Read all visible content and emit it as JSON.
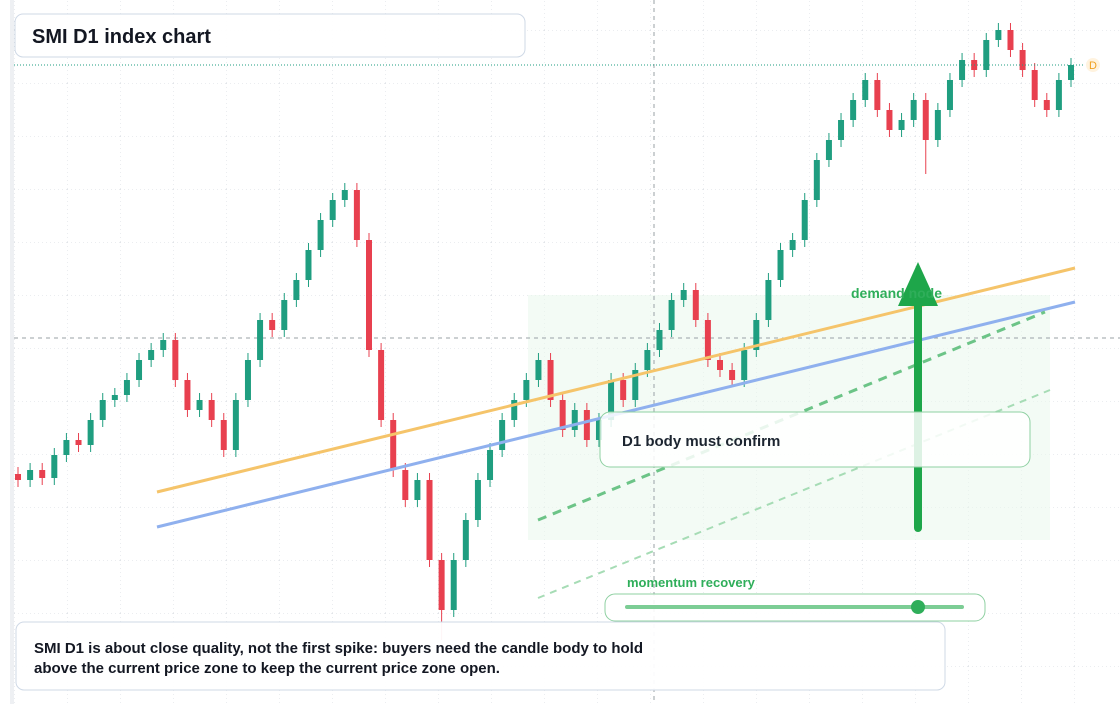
{
  "chart_data": {
    "type": "candlestick",
    "title": "SMI D1 index chart",
    "ylim": [
      0,
      704
    ],
    "up_color": "#1f9e80",
    "down_color": "#e8404f",
    "last_price_badge": "D",
    "annotations": {
      "zone": "demand node",
      "confirm": "D1 body must confirm",
      "momentum": "momentum recovery",
      "note": [
        "SMI D1 is about close quality, not the first spike: buyers need the candle body to hold",
        "above the current price zone to keep the current price zone open."
      ]
    },
    "open": [
      230,
      224,
      234,
      226,
      249,
      264,
      259,
      284,
      304,
      309,
      324,
      344,
      354,
      364,
      324,
      294,
      304,
      284,
      254,
      304,
      344,
      384,
      374,
      404,
      424,
      454,
      484,
      504,
      514,
      464,
      354,
      284,
      234,
      204,
      224,
      144,
      94,
      144,
      184,
      224,
      254,
      284,
      304,
      324,
      344,
      304,
      274,
      294,
      264,
      284,
      324,
      304,
      334,
      354,
      374,
      404,
      414,
      384,
      344,
      334,
      324,
      354,
      384,
      424,
      454,
      464,
      504,
      544,
      564,
      584,
      604,
      624,
      594,
      574,
      584,
      604,
      564,
      594,
      624,
      644,
      634,
      664,
      674,
      654,
      634,
      604,
      594,
      624
    ],
    "high": [
      237,
      241,
      241,
      256,
      271,
      271,
      291,
      311,
      316,
      331,
      351,
      361,
      371,
      371,
      331,
      311,
      311,
      291,
      311,
      351,
      391,
      391,
      411,
      431,
      461,
      491,
      511,
      521,
      521,
      471,
      361,
      291,
      241,
      231,
      231,
      151,
      151,
      191,
      231,
      261,
      291,
      311,
      331,
      351,
      351,
      311,
      301,
      301,
      291,
      331,
      331,
      341,
      361,
      381,
      411,
      421,
      421,
      391,
      351,
      341,
      361,
      391,
      431,
      461,
      471,
      511,
      551,
      571,
      591,
      611,
      631,
      631,
      601,
      591,
      611,
      611,
      601,
      631,
      651,
      651,
      671,
      681,
      681,
      661,
      641,
      611,
      631,
      646
    ],
    "low": [
      217,
      217,
      219,
      219,
      242,
      252,
      252,
      277,
      297,
      302,
      317,
      337,
      347,
      317,
      287,
      287,
      277,
      247,
      247,
      297,
      337,
      367,
      367,
      397,
      417,
      447,
      477,
      497,
      457,
      347,
      277,
      227,
      197,
      197,
      137,
      64,
      87,
      137,
      177,
      217,
      247,
      277,
      297,
      317,
      297,
      267,
      267,
      257,
      257,
      277,
      297,
      297,
      327,
      347,
      367,
      397,
      377,
      337,
      327,
      317,
      317,
      347,
      377,
      417,
      447,
      457,
      497,
      537,
      557,
      577,
      597,
      587,
      567,
      567,
      577,
      530,
      557,
      587,
      617,
      627,
      627,
      657,
      647,
      627,
      597,
      587,
      587,
      617
    ],
    "close": [
      224,
      234,
      226,
      249,
      264,
      259,
      284,
      304,
      309,
      324,
      344,
      354,
      364,
      324,
      294,
      304,
      284,
      254,
      304,
      344,
      384,
      374,
      404,
      424,
      454,
      484,
      504,
      514,
      464,
      354,
      284,
      234,
      204,
      224,
      144,
      94,
      144,
      184,
      224,
      254,
      284,
      304,
      324,
      344,
      304,
      274,
      294,
      264,
      284,
      324,
      304,
      334,
      354,
      374,
      404,
      414,
      384,
      344,
      334,
      324,
      354,
      384,
      424,
      454,
      464,
      504,
      544,
      564,
      584,
      604,
      624,
      594,
      574,
      584,
      604,
      564,
      594,
      624,
      644,
      634,
      664,
      674,
      654,
      634,
      604,
      594,
      624,
      639
    ]
  }
}
